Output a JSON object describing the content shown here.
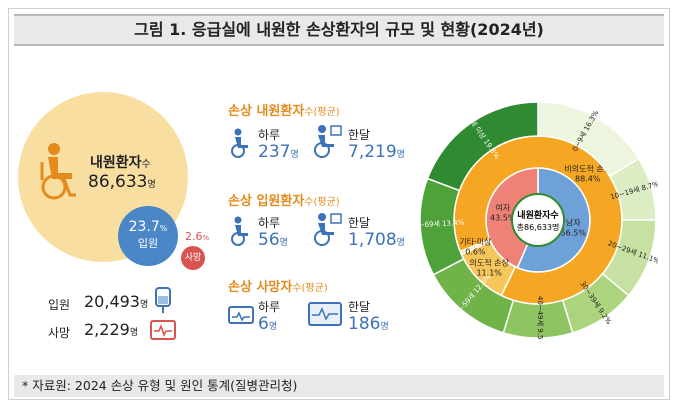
{
  "title": "그림 1. 응급실에 내원한 손상환자의 규모 및 현황(2024년)",
  "footer": "* 자료원: 2024 손상 유형 및 원인 통계(질병관리청)",
  "colors": {
    "accent": "#e58b1c",
    "blue": "#3b72b8",
    "peach": "#f9dea1",
    "red": "#d9534f",
    "green": "#2f9b47"
  },
  "left": {
    "visits_label": "내원환자",
    "visits_suffix": "수",
    "visits_value": "86,633",
    "visits_unit": "명",
    "admit_pct": "23.7",
    "admit_pct_unit": "%",
    "admit_label": "입원",
    "death_pct": "2.6",
    "death_pct_unit": "%",
    "death_label": "사망",
    "admit_row_label": "입원",
    "admit_row_value": "20,493",
    "death_row_label": "사망",
    "death_row_value": "2,229",
    "unit": "명"
  },
  "middle": {
    "visit_section": {
      "title": "손상 내원환자",
      "suffix": "수(평균)",
      "day_label": "하루",
      "day_value": "237",
      "month_label": "한달",
      "month_value": "7,219"
    },
    "admit_section": {
      "title": "손상 입원환자",
      "suffix": "수(평균)",
      "day_label": "하루",
      "day_value": "56",
      "month_label": "한달",
      "month_value": "1,708"
    },
    "death_section": {
      "title": "손상 사망자",
      "suffix": "수(평균)",
      "day_label": "하루",
      "day_value": "6",
      "month_label": "한달",
      "month_value": "186"
    },
    "unit": "명"
  },
  "chart_data": {
    "type": "pie",
    "center": {
      "label": "내원환자",
      "suffix": "수",
      "value": "총86,633명"
    },
    "rings": [
      {
        "name": "성별",
        "slices": [
          {
            "label": "남자",
            "value": 56.5,
            "color": "#6ea1d7"
          },
          {
            "label": "여자",
            "value": 43.5,
            "color": "#ee8277"
          }
        ]
      },
      {
        "name": "의도성",
        "slices": [
          {
            "label": "비의도적 손상",
            "value": 88.4,
            "color": "#f5a623"
          },
          {
            "label": "의도적 손상",
            "value": 11.1,
            "color": "#f7c65a"
          },
          {
            "label": "기타·미상",
            "value": 0.6,
            "color": "#fbe4a4"
          }
        ]
      },
      {
        "name": "연령",
        "slices": [
          {
            "label": "0~9세",
            "value": 16.3,
            "color": "#eef5df"
          },
          {
            "label": "10~19세",
            "value": 8.7,
            "color": "#dcedc3"
          },
          {
            "label": "20~29세",
            "value": 11.1,
            "color": "#c6e1a1"
          },
          {
            "label": "30~39세",
            "value": 9.2,
            "color": "#acd47f"
          },
          {
            "label": "40~49세",
            "value": 9.5,
            "color": "#8ec462"
          },
          {
            "label": "50~59세",
            "value": 12.6,
            "color": "#6fb349"
          },
          {
            "label": "60~69세",
            "value": 13.4,
            "color": "#4fa13a"
          },
          {
            "label": "70세 이상",
            "value": 19.3,
            "color": "#2f8a32"
          }
        ]
      }
    ]
  }
}
